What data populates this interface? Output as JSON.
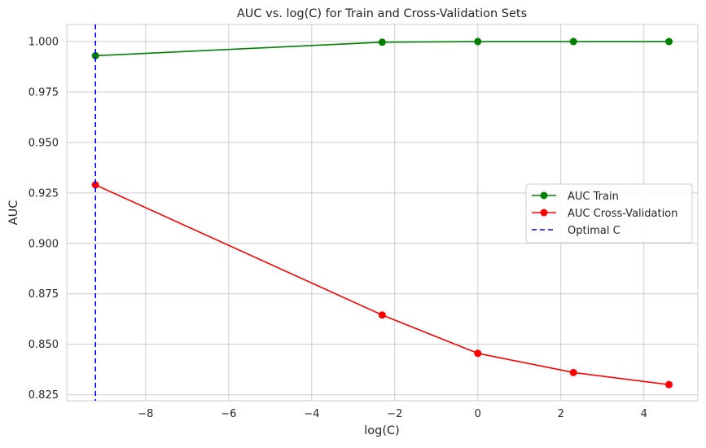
{
  "chart_data": {
    "type": "line",
    "title": "AUC vs. log(C) for Train and Cross-Validation Sets",
    "xlabel": "log(C)",
    "ylabel": "AUC",
    "xlim": [
      -9.9,
      5.3
    ],
    "ylim": [
      0.822,
      1.0085
    ],
    "grid": true,
    "legend_position": "center-right",
    "x_ticks": [
      -8,
      -6,
      -4,
      -2,
      0,
      2,
      4
    ],
    "x_tick_labels": [
      "−8",
      "−6",
      "−4",
      "−2",
      "0",
      "2",
      "4"
    ],
    "y_ticks": [
      0.825,
      0.85,
      0.875,
      0.9,
      0.925,
      0.95,
      0.975,
      1.0
    ],
    "y_tick_labels": [
      "0.825",
      "0.850",
      "0.875",
      "0.900",
      "0.925",
      "0.950",
      "0.975",
      "1.000"
    ],
    "series": [
      {
        "name": "AUC Train",
        "color": "#008000",
        "marker": "circle",
        "x": [
          -9.21,
          -2.303,
          0,
          2.303,
          4.605
        ],
        "y": [
          0.993,
          0.9997,
          1.0,
          1.0,
          1.0
        ]
      },
      {
        "name": "AUC Cross-Validation",
        "color": "#ff0000",
        "marker": "circle",
        "x": [
          -9.21,
          -2.303,
          0,
          2.303,
          4.605
        ],
        "y": [
          0.929,
          0.8645,
          0.8455,
          0.836,
          0.83
        ]
      }
    ],
    "vlines": [
      {
        "name": "Optimal C",
        "x": -9.21,
        "color": "#0000ff",
        "style": "dashed"
      }
    ]
  }
}
